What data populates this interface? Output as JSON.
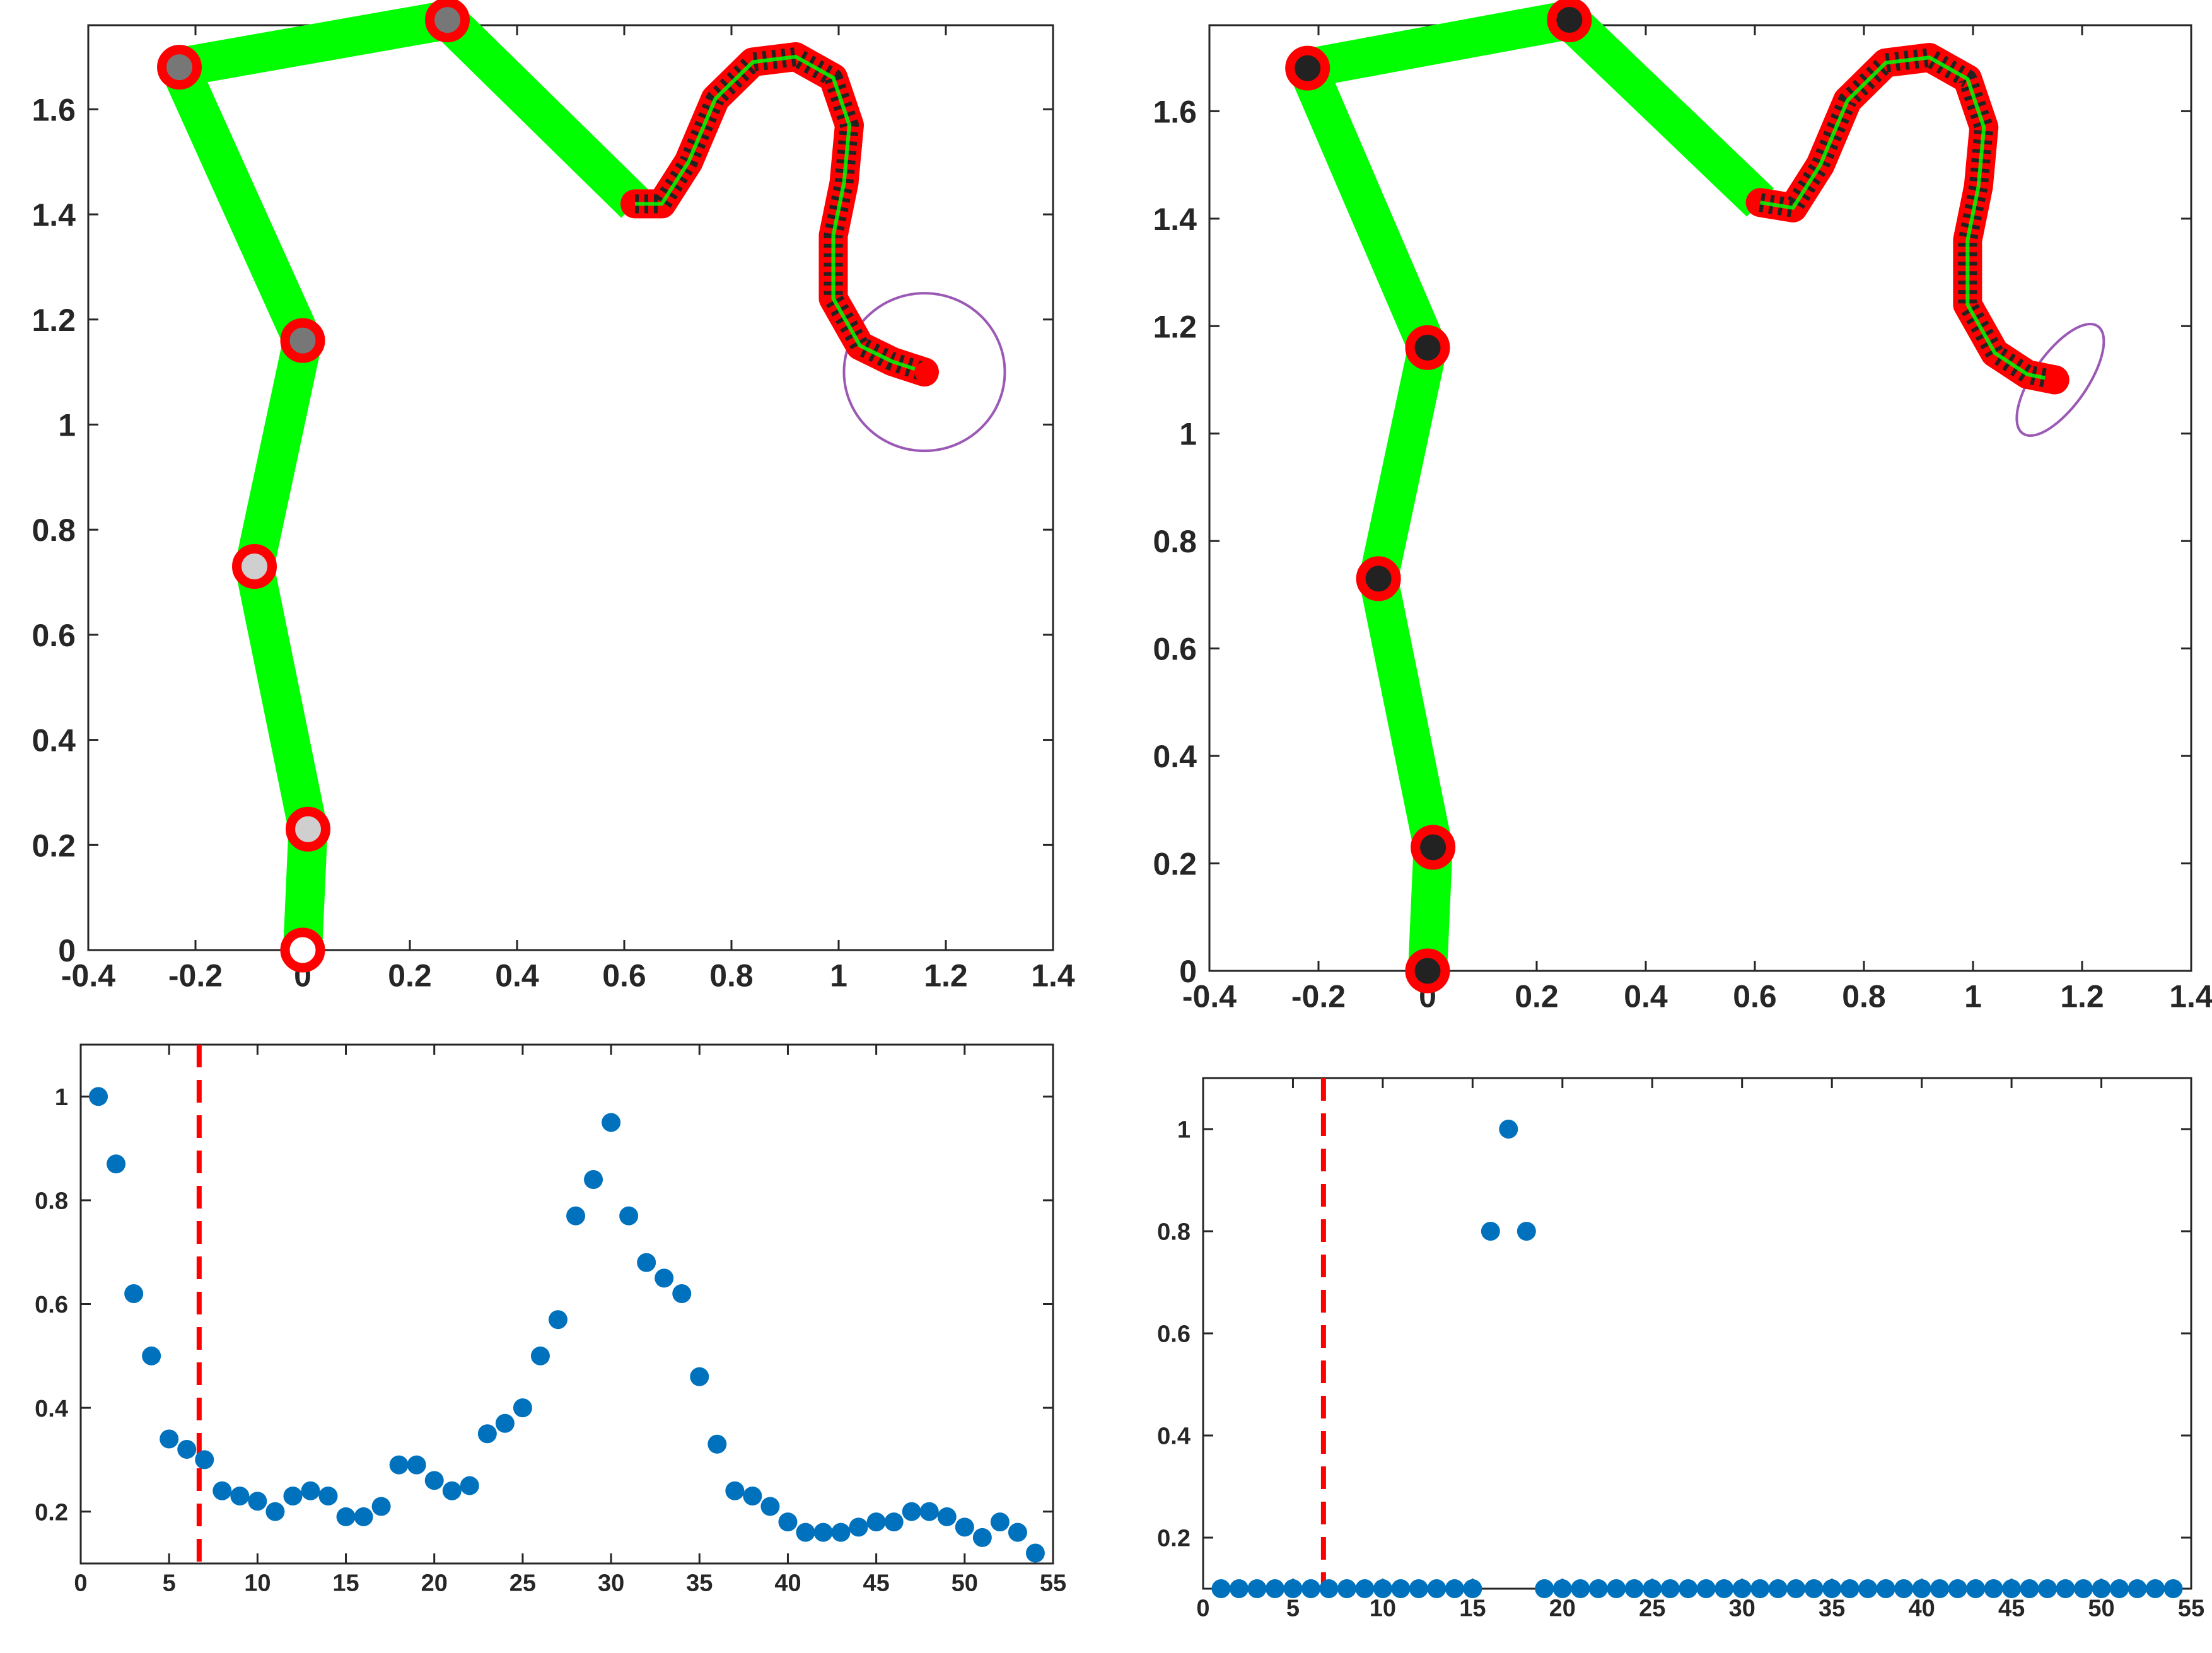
{
  "chart_data": [
    {
      "type": "line",
      "panel": "top-left",
      "xlim": [
        -0.4,
        1.4
      ],
      "ylim": [
        0,
        1.76
      ],
      "xticks": [
        "-0.4",
        "-0.2",
        "0",
        "0.2",
        "0.4",
        "0.6",
        "0.8",
        "1",
        "1.2",
        "1.4"
      ],
      "yticks": [
        "0",
        "0.2",
        "0.4",
        "0.6",
        "0.8",
        "1",
        "1.2",
        "1.4",
        "1.6"
      ],
      "colors": {
        "link": "#00ff00",
        "joint_ring": "#ff0000",
        "continuum_outline": "#ff0000",
        "continuum_core": "#222222",
        "target": "#9b59b6"
      },
      "rigid_links": [
        [
          0,
          0
        ],
        [
          0.01,
          0.23
        ],
        [
          -0.09,
          0.73
        ],
        [
          0,
          1.16
        ],
        [
          -0.23,
          1.68
        ],
        [
          0.27,
          1.77
        ],
        [
          0.62,
          1.42
        ]
      ],
      "joint_fills": [
        "#ffffff",
        "#cfcfcf",
        "#cfcfcf",
        "#777777",
        "#777777",
        "#777777"
      ],
      "continuum": [
        [
          0.62,
          1.42
        ],
        [
          0.67,
          1.42
        ],
        [
          0.72,
          1.5
        ],
        [
          0.77,
          1.62
        ],
        [
          0.84,
          1.69
        ],
        [
          0.92,
          1.7
        ],
        [
          0.99,
          1.66
        ],
        [
          1.02,
          1.57
        ],
        [
          1.01,
          1.46
        ],
        [
          0.99,
          1.36
        ],
        [
          0.99,
          1.24
        ],
        [
          1.04,
          1.15
        ],
        [
          1.1,
          1.12
        ],
        [
          1.16,
          1.1
        ]
      ],
      "target_ellipse": {
        "cx": 1.16,
        "cy": 1.1,
        "rx": 0.15,
        "ry": 0.15,
        "angle": 0
      }
    },
    {
      "type": "line",
      "panel": "top-right",
      "xlim": [
        -0.4,
        1.4
      ],
      "ylim": [
        0,
        1.76
      ],
      "xticks": [
        "-0.4",
        "-0.2",
        "0",
        "0.2",
        "0.4",
        "0.6",
        "0.8",
        "1",
        "1.2",
        "1.4"
      ],
      "yticks": [
        "0",
        "0.2",
        "0.4",
        "0.6",
        "0.8",
        "1",
        "1.2",
        "1.4",
        "1.6"
      ],
      "colors": {
        "link": "#00ff00",
        "joint_ring": "#ff0000",
        "continuum_outline": "#ff0000",
        "continuum_core": "#222222",
        "target": "#9b59b6"
      },
      "rigid_links": [
        [
          0,
          0
        ],
        [
          0.01,
          0.23
        ],
        [
          -0.09,
          0.73
        ],
        [
          0,
          1.16
        ],
        [
          -0.22,
          1.68
        ],
        [
          0.26,
          1.77
        ],
        [
          0.61,
          1.43
        ]
      ],
      "joint_fills": [
        "#222222",
        "#222222",
        "#222222",
        "#222222",
        "#222222",
        "#222222"
      ],
      "continuum": [
        [
          0.61,
          1.43
        ],
        [
          0.67,
          1.42
        ],
        [
          0.72,
          1.5
        ],
        [
          0.77,
          1.62
        ],
        [
          0.84,
          1.69
        ],
        [
          0.92,
          1.7
        ],
        [
          0.99,
          1.66
        ],
        [
          1.02,
          1.57
        ],
        [
          1.01,
          1.46
        ],
        [
          0.99,
          1.36
        ],
        [
          0.99,
          1.24
        ],
        [
          1.04,
          1.15
        ],
        [
          1.1,
          1.11
        ],
        [
          1.15,
          1.1
        ]
      ],
      "target_ellipse": {
        "cx": 1.16,
        "cy": 1.1,
        "rx": 0.12,
        "ry": 0.05,
        "angle": -55
      }
    },
    {
      "type": "scatter",
      "panel": "bottom-left",
      "xlim": [
        0,
        55
      ],
      "ylim": [
        0.1,
        1.1
      ],
      "xticks": [
        "0",
        "5",
        "10",
        "15",
        "20",
        "25",
        "30",
        "35",
        "40",
        "45",
        "50",
        "55"
      ],
      "yticks": [
        "0.2",
        "0.4",
        "0.6",
        "0.8",
        "1"
      ],
      "marker_color": "#0072bd",
      "vline": {
        "x": 6.7,
        "color": "#ff0000"
      },
      "x": [
        1,
        2,
        3,
        4,
        5,
        6,
        7,
        8,
        9,
        10,
        11,
        12,
        13,
        14,
        15,
        16,
        17,
        18,
        19,
        20,
        21,
        22,
        23,
        24,
        25,
        26,
        27,
        28,
        29,
        30,
        31,
        32,
        33,
        34,
        35,
        36,
        37,
        38,
        39,
        40,
        41,
        42,
        43,
        44,
        45,
        46,
        47,
        48,
        49,
        50,
        51,
        52,
        53,
        54
      ],
      "y": [
        1.0,
        0.87,
        0.62,
        0.5,
        0.34,
        0.32,
        0.3,
        0.24,
        0.23,
        0.22,
        0.2,
        0.23,
        0.24,
        0.23,
        0.19,
        0.19,
        0.21,
        0.29,
        0.29,
        0.26,
        0.24,
        0.25,
        0.35,
        0.37,
        0.4,
        0.5,
        0.57,
        0.77,
        0.84,
        0.95,
        0.77,
        0.68,
        0.65,
        0.62,
        0.46,
        0.33,
        0.24,
        0.23,
        0.21,
        0.18,
        0.16,
        0.16,
        0.16,
        0.17,
        0.18,
        0.18,
        0.2,
        0.2,
        0.19,
        0.17,
        0.15,
        0.18,
        0.16,
        0.12
      ]
    },
    {
      "type": "scatter",
      "panel": "bottom-right",
      "xlim": [
        0,
        55
      ],
      "ylim": [
        0.1,
        1.1
      ],
      "xticks": [
        "0",
        "5",
        "10",
        "15",
        "20",
        "25",
        "30",
        "35",
        "40",
        "45",
        "50",
        "55"
      ],
      "yticks": [
        "0.2",
        "0.4",
        "0.6",
        "0.8",
        "1"
      ],
      "marker_color": "#0072bd",
      "vline": {
        "x": 6.7,
        "color": "#ff0000"
      },
      "x": [
        1,
        2,
        3,
        4,
        5,
        6,
        7,
        8,
        9,
        10,
        11,
        12,
        13,
        14,
        15,
        16,
        17,
        18,
        19,
        20,
        21,
        22,
        23,
        24,
        25,
        26,
        27,
        28,
        29,
        30,
        31,
        32,
        33,
        34,
        35,
        36,
        37,
        38,
        39,
        40,
        41,
        42,
        43,
        44,
        45,
        46,
        47,
        48,
        49,
        50,
        51,
        52,
        53,
        54
      ],
      "y": [
        0.1,
        0.1,
        0.1,
        0.1,
        0.1,
        0.1,
        0.1,
        0.1,
        0.1,
        0.1,
        0.1,
        0.1,
        0.1,
        0.1,
        0.1,
        0.8,
        1.0,
        0.8,
        0.1,
        0.1,
        0.1,
        0.1,
        0.1,
        0.1,
        0.1,
        0.1,
        0.1,
        0.1,
        0.1,
        0.1,
        0.1,
        0.1,
        0.1,
        0.1,
        0.1,
        0.1,
        0.1,
        0.1,
        0.1,
        0.1,
        0.1,
        0.1,
        0.1,
        0.1,
        0.1,
        0.1,
        0.1,
        0.1,
        0.1,
        0.1,
        0.1,
        0.1,
        0.1,
        0.1
      ]
    }
  ]
}
